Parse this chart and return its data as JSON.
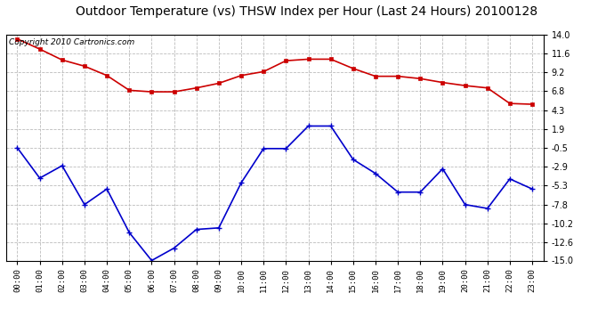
{
  "title": "Outdoor Temperature (vs) THSW Index per Hour (Last 24 Hours) 20100128",
  "copyright_text": "Copyright 2010 Cartronics.com",
  "hours": [
    "00:00",
    "01:00",
    "02:00",
    "03:00",
    "04:00",
    "05:00",
    "06:00",
    "07:00",
    "08:00",
    "09:00",
    "10:00",
    "11:00",
    "12:00",
    "13:00",
    "14:00",
    "15:00",
    "16:00",
    "17:00",
    "18:00",
    "19:00",
    "20:00",
    "21:00",
    "22:00",
    "23:00"
  ],
  "red_data": [
    13.5,
    12.2,
    10.8,
    10.0,
    8.8,
    6.9,
    6.7,
    6.7,
    7.2,
    7.8,
    8.8,
    9.3,
    10.7,
    10.9,
    10.9,
    9.7,
    8.7,
    8.7,
    8.4,
    7.9,
    7.5,
    7.2,
    5.2,
    5.1
  ],
  "blue_data": [
    -0.5,
    -4.4,
    -2.8,
    -7.8,
    -5.8,
    -11.4,
    -15.0,
    -13.4,
    -11.0,
    -10.8,
    -5.0,
    -0.6,
    -0.6,
    2.3,
    2.3,
    -2.0,
    -3.8,
    -6.2,
    -6.2,
    -3.2,
    -7.8,
    -8.3,
    -4.5,
    -5.8
  ],
  "ylim": [
    -15.0,
    14.0
  ],
  "yticks": [
    14.0,
    11.6,
    9.2,
    6.8,
    4.3,
    1.9,
    -0.5,
    -2.9,
    -5.3,
    -7.8,
    -10.2,
    -12.6,
    -15.0
  ],
  "red_color": "#cc0000",
  "blue_color": "#0000cc",
  "bg_color": "#ffffff",
  "grid_color": "#bbbbbb",
  "title_fontsize": 10,
  "copyright_fontsize": 6.5
}
